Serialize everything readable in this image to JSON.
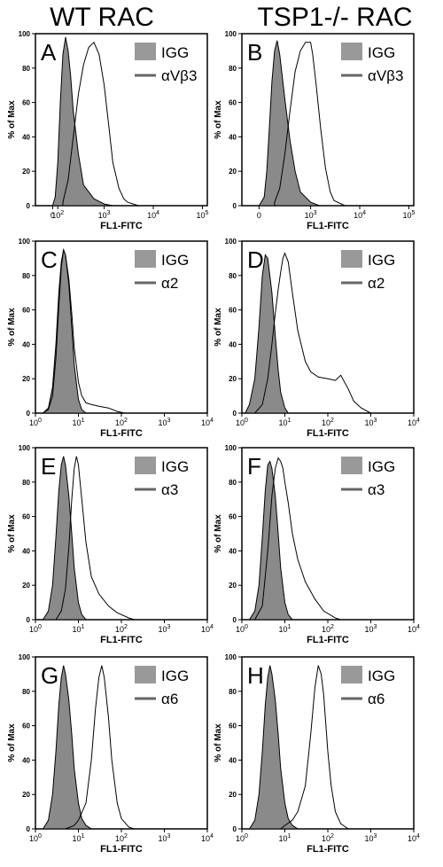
{
  "columns": [
    "WT RAC",
    "TSP1-/- RAC"
  ],
  "colors": {
    "igg_fill": "#8a8a8a",
    "igg_legend": "#999999",
    "line": "#000000",
    "legend_line": "#666666"
  },
  "chart_data": [
    {
      "type": "area",
      "panel": "A",
      "column": "WT RAC",
      "xlabel": "FL1-FITC",
      "ylabel": "% of Max",
      "x_scale": "biexponential",
      "x_ticks": [
        "0",
        "10^2",
        "10^3",
        "10^4",
        "10^5"
      ],
      "y_ticks": [
        "0",
        "20",
        "40",
        "60",
        "80",
        "100"
      ],
      "ylim": [
        0,
        100
      ],
      "legend": [
        "IGG",
        "αVβ3"
      ],
      "legend_position": "top-right",
      "series": [
        {
          "name": "IGG",
          "style": "filled",
          "x": [
            0,
            50,
            100,
            150,
            200,
            250,
            300,
            350,
            400,
            500,
            600,
            800,
            1000,
            1500
          ],
          "values": [
            0,
            5,
            25,
            60,
            88,
            98,
            90,
            75,
            55,
            30,
            12,
            4,
            1,
            0
          ]
        },
        {
          "name": "αVβ3",
          "style": "outline",
          "x": [
            200,
            300,
            400,
            500,
            600,
            700,
            800,
            900,
            1000,
            1200,
            1500,
            2000,
            2500,
            3000,
            5000
          ],
          "values": [
            2,
            15,
            40,
            65,
            82,
            92,
            95,
            88,
            70,
            50,
            25,
            10,
            4,
            2,
            0
          ]
        }
      ]
    },
    {
      "type": "area",
      "panel": "B",
      "column": "TSP1-/- RAC",
      "xlabel": "FL1-FITC",
      "ylabel": "% of Max",
      "x_scale": "biexponential",
      "x_ticks": [
        "0",
        "10^3",
        "10^4",
        "10^5"
      ],
      "y_ticks": [
        "0",
        "20",
        "40",
        "60",
        "80",
        "100"
      ],
      "ylim": [
        0,
        100
      ],
      "legend": [
        "IGG",
        "αVβ3"
      ],
      "legend_position": "top-right",
      "series": [
        {
          "name": "IGG",
          "style": "filled",
          "x": [
            0,
            100,
            150,
            200,
            250,
            300,
            350,
            400,
            500,
            600,
            700,
            800,
            1000,
            1500
          ],
          "values": [
            0,
            5,
            20,
            45,
            72,
            90,
            96,
            88,
            62,
            38,
            20,
            8,
            2,
            0
          ]
        },
        {
          "name": "αVβ3",
          "style": "outline",
          "x": [
            300,
            400,
            500,
            600,
            700,
            800,
            900,
            1000,
            1100,
            1300,
            1600,
            2000,
            2500,
            3000,
            5000
          ],
          "values": [
            2,
            10,
            30,
            55,
            78,
            90,
            95,
            95,
            88,
            70,
            45,
            22,
            8,
            3,
            0
          ]
        }
      ]
    },
    {
      "type": "area",
      "panel": "C",
      "column": "WT RAC",
      "xlabel": "FL1-FITC",
      "ylabel": "% of Max",
      "x_scale": "log",
      "xlim": [
        1,
        10000
      ],
      "x_ticks": [
        "10^0",
        "10^1",
        "10^2",
        "10^3",
        "10^4"
      ],
      "y_ticks": [
        "0",
        "20",
        "40",
        "60",
        "80",
        "100"
      ],
      "ylim": [
        0,
        100
      ],
      "legend": [
        "IGG",
        "α2"
      ],
      "legend_position": "top-right",
      "series": [
        {
          "name": "IGG",
          "style": "filled",
          "x": [
            1.5,
            2,
            2.5,
            3,
            3.5,
            4,
            4.5,
            5,
            6,
            7,
            8,
            10,
            12,
            15
          ],
          "values": [
            0,
            3,
            15,
            40,
            70,
            88,
            95,
            92,
            75,
            50,
            28,
            8,
            2,
            0
          ]
        },
        {
          "name": "α2",
          "style": "outline",
          "x": [
            1.5,
            2,
            2.5,
            3,
            3.5,
            4,
            4.5,
            5,
            6,
            7,
            8,
            10,
            12,
            15,
            20,
            30,
            50,
            80,
            120
          ],
          "values": [
            0,
            2,
            10,
            32,
            62,
            85,
            95,
            92,
            78,
            58,
            38,
            18,
            10,
            6,
            5,
            4,
            3,
            1,
            0
          ]
        }
      ]
    },
    {
      "type": "area",
      "panel": "D",
      "column": "TSP1-/- RAC",
      "xlabel": "FL1-FITC",
      "ylabel": "% of Max",
      "x_scale": "log",
      "xlim": [
        1,
        10000
      ],
      "x_ticks": [
        "10^0",
        "10^1",
        "10^2",
        "10^3",
        "10^4"
      ],
      "y_ticks": [
        "0",
        "20",
        "40",
        "60",
        "80",
        "100"
      ],
      "ylim": [
        0,
        100
      ],
      "legend": [
        "IGG",
        "α2"
      ],
      "legend_position": "top-right",
      "series": [
        {
          "name": "IGG",
          "style": "filled",
          "x": [
            1.2,
            1.5,
            2,
            2.5,
            3,
            3.5,
            4,
            5,
            6,
            7,
            8,
            10,
            12
          ],
          "values": [
            0,
            5,
            20,
            50,
            80,
            92,
            90,
            70,
            45,
            25,
            12,
            3,
            0
          ]
        },
        {
          "name": "α2",
          "style": "outline",
          "x": [
            2,
            3,
            4,
            5,
            6,
            7,
            8,
            9,
            10,
            12,
            15,
            20,
            30,
            40,
            60,
            100,
            150,
            200,
            300,
            400,
            600,
            1000
          ],
          "values": [
            0,
            5,
            20,
            40,
            58,
            72,
            82,
            90,
            93,
            88,
            70,
            48,
            30,
            24,
            21,
            20,
            19,
            22,
            14,
            7,
            3,
            0
          ]
        }
      ]
    },
    {
      "type": "area",
      "panel": "E",
      "column": "WT RAC",
      "xlabel": "FL1-FITC",
      "ylabel": "% of Max",
      "x_scale": "log",
      "xlim": [
        1,
        10000
      ],
      "x_ticks": [
        "10^0",
        "10^1",
        "10^2",
        "10^3",
        "10^4"
      ],
      "y_ticks": [
        "0",
        "20",
        "40",
        "60",
        "80",
        "100"
      ],
      "ylim": [
        0,
        100
      ],
      "legend": [
        "IGG",
        "α3"
      ],
      "legend_position": "top-right",
      "series": [
        {
          "name": "IGG",
          "style": "filled",
          "x": [
            1.5,
            2,
            2.5,
            3,
            3.5,
            4,
            4.5,
            5,
            6,
            7,
            8,
            10,
            12,
            15
          ],
          "values": [
            0,
            5,
            20,
            48,
            75,
            90,
            95,
            90,
            72,
            50,
            30,
            10,
            3,
            0
          ]
        },
        {
          "name": "α3",
          "style": "outline",
          "x": [
            3,
            4,
            5,
            6,
            7,
            8,
            9,
            10,
            12,
            15,
            20,
            30,
            50,
            80,
            150,
            200
          ],
          "values": [
            0,
            5,
            18,
            42,
            70,
            88,
            95,
            90,
            70,
            45,
            25,
            15,
            8,
            4,
            1,
            0
          ]
        }
      ]
    },
    {
      "type": "area",
      "panel": "F",
      "column": "TSP1-/- RAC",
      "xlabel": "FL1-FITC",
      "ylabel": "% of Max",
      "x_scale": "log",
      "xlim": [
        1,
        10000
      ],
      "x_ticks": [
        "10^0",
        "10^1",
        "10^2",
        "10^3",
        "10^4"
      ],
      "y_ticks": [
        "0",
        "20",
        "40",
        "60",
        "80",
        "100"
      ],
      "ylim": [
        0,
        100
      ],
      "legend": [
        "IGG",
        "α3"
      ],
      "legend_position": "top-right",
      "series": [
        {
          "name": "IGG",
          "style": "filled",
          "x": [
            1.5,
            2,
            2.5,
            3,
            3.5,
            4,
            4.5,
            5,
            6,
            7,
            8,
            10,
            12,
            15
          ],
          "values": [
            0,
            5,
            20,
            48,
            75,
            90,
            92,
            88,
            72,
            50,
            30,
            10,
            3,
            0
          ]
        },
        {
          "name": "α3",
          "style": "outline",
          "x": [
            2,
            3,
            4,
            5,
            6,
            7,
            8,
            9,
            10,
            12,
            15,
            20,
            30,
            50,
            80,
            150,
            200
          ],
          "values": [
            0,
            8,
            40,
            72,
            88,
            94,
            92,
            88,
            80,
            68,
            50,
            35,
            22,
            12,
            5,
            1,
            0
          ]
        }
      ]
    },
    {
      "type": "area",
      "panel": "G",
      "column": "WT RAC",
      "xlabel": "FL1-FITC",
      "ylabel": "% of Max",
      "x_scale": "log",
      "xlim": [
        1,
        10000
      ],
      "x_ticks": [
        "10^0",
        "10^1",
        "10^2",
        "10^3",
        "10^4"
      ],
      "y_ticks": [
        "0",
        "20",
        "40",
        "60",
        "80",
        "100"
      ],
      "ylim": [
        0,
        100
      ],
      "legend": [
        "IGG",
        "α6"
      ],
      "legend_position": "top-right",
      "series": [
        {
          "name": "IGG",
          "style": "filled",
          "x": [
            1.5,
            2,
            2.5,
            3,
            3.5,
            4,
            4.5,
            5,
            6,
            7,
            8,
            10,
            12,
            15,
            20
          ],
          "values": [
            0,
            5,
            20,
            45,
            72,
            88,
            95,
            90,
            75,
            55,
            35,
            15,
            6,
            2,
            0
          ]
        },
        {
          "name": "α6",
          "style": "outline",
          "x": [
            5,
            8,
            10,
            15,
            20,
            25,
            30,
            35,
            40,
            50,
            60,
            80,
            100,
            150,
            200
          ],
          "values": [
            0,
            2,
            5,
            15,
            40,
            70,
            88,
            95,
            88,
            65,
            40,
            15,
            6,
            1,
            0
          ]
        }
      ]
    },
    {
      "type": "area",
      "panel": "H",
      "column": "TSP1-/- RAC",
      "xlabel": "FL1-FITC",
      "ylabel": "% of Max",
      "x_scale": "log",
      "xlim": [
        1,
        10000
      ],
      "x_ticks": [
        "10^0",
        "10^1",
        "10^2",
        "10^3",
        "10^4"
      ],
      "y_ticks": [
        "0",
        "20",
        "40",
        "60",
        "80",
        "100"
      ],
      "ylim": [
        0,
        100
      ],
      "legend": [
        "IGG",
        "α6"
      ],
      "legend_position": "top-right",
      "series": [
        {
          "name": "IGG",
          "style": "filled",
          "x": [
            1.5,
            2,
            2.5,
            3,
            3.5,
            4,
            4.5,
            5,
            6,
            7,
            8,
            10,
            12,
            15,
            20
          ],
          "values": [
            0,
            5,
            20,
            45,
            72,
            88,
            95,
            90,
            75,
            55,
            35,
            15,
            6,
            2,
            0
          ]
        },
        {
          "name": "α6",
          "style": "outline",
          "x": [
            8,
            10,
            15,
            20,
            30,
            40,
            50,
            60,
            70,
            80,
            100,
            120,
            150,
            200,
            300
          ],
          "values": [
            0,
            2,
            5,
            10,
            25,
            55,
            82,
            95,
            90,
            78,
            45,
            25,
            10,
            3,
            0
          ]
        }
      ]
    }
  ]
}
